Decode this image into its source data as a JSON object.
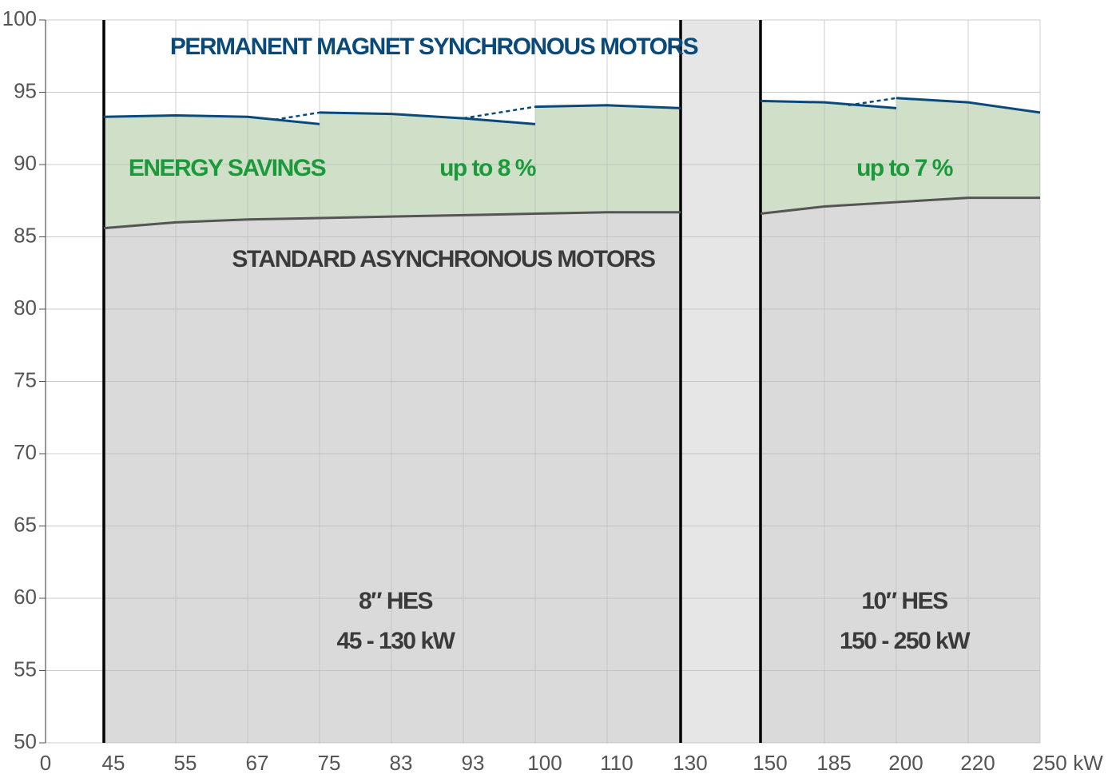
{
  "chart_data": {
    "type": "line",
    "annotations": {
      "pmsm": "PERMANENT MAGNET SYNCHRONOUS MOTORS",
      "savings": "ENERGY SAVINGS",
      "savings_8": "up to 8 %",
      "savings_7": "up to 7 %",
      "standard": "STANDARD ASYNCHRONOUS MOTORS",
      "hes8_name": "8″ HES",
      "hes8_range": "45 - 130 kW",
      "hes10_name": "10″ HES",
      "hes10_range": "150 - 250 kW"
    },
    "x_unit": "kW",
    "xticks": [
      0,
      45,
      55,
      67,
      75,
      83,
      93,
      100,
      110,
      130,
      150,
      185,
      200,
      220,
      250
    ],
    "ylim": [
      50,
      100
    ],
    "yticks": [
      50,
      55,
      60,
      65,
      70,
      75,
      80,
      85,
      90,
      95,
      100
    ],
    "grid": true,
    "series": [
      {
        "color": "#0a4a7a",
        "style": "solid",
        "x": [
          45,
          55,
          67,
          75
        ],
        "values": [
          93.3,
          93.4,
          93.3,
          92.8
        ]
      },
      {
        "color": "#0a4a7a",
        "style": "solid",
        "x": [
          75,
          83,
          93,
          100
        ],
        "values": [
          93.6,
          93.5,
          93.2,
          92.8
        ]
      },
      {
        "color": "#0a4a7a",
        "style": "solid",
        "x": [
          100,
          110,
          130
        ],
        "values": [
          94.0,
          94.1,
          93.9
        ]
      },
      {
        "color": "#0a4a7a",
        "style": "solid",
        "x": [
          150,
          185,
          200
        ],
        "values": [
          94.4,
          94.3,
          93.9
        ]
      },
      {
        "color": "#0a4a7a",
        "style": "solid",
        "x": [
          200,
          220,
          250
        ],
        "values": [
          94.6,
          94.3,
          93.6
        ]
      },
      {
        "color": "#0a4a7a",
        "style": "dashed",
        "x": [
          70,
          75
        ],
        "values": [
          93.1,
          93.6
        ]
      },
      {
        "color": "#0a4a7a",
        "style": "dashed",
        "x": [
          93,
          100
        ],
        "values": [
          93.2,
          94.0
        ]
      },
      {
        "color": "#0a4a7a",
        "style": "dashed",
        "x": [
          190,
          200
        ],
        "values": [
          94.1,
          94.6
        ]
      },
      {
        "color": "#555555",
        "style": "solid",
        "x": [
          45,
          55,
          67,
          75,
          83,
          93,
          100,
          110,
          130
        ],
        "values": [
          85.6,
          86.0,
          86.2,
          86.3,
          86.4,
          86.5,
          86.6,
          86.7,
          86.7
        ]
      },
      {
        "color": "#555555",
        "style": "solid",
        "x": [
          150,
          185,
          200,
          220,
          250
        ],
        "values": [
          86.6,
          87.1,
          87.4,
          87.7,
          87.7
        ]
      }
    ]
  }
}
